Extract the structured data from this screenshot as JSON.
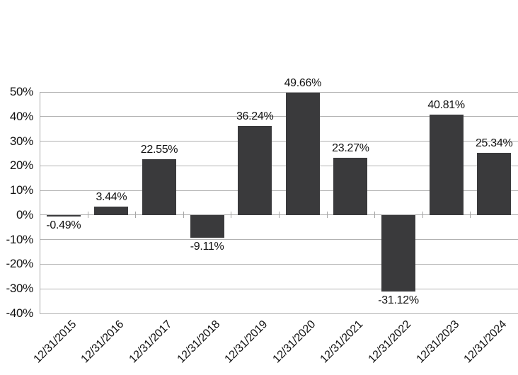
{
  "chart_data": {
    "type": "bar",
    "title": "",
    "xlabel": "",
    "ylabel": "",
    "categories": [
      "12/31/2015",
      "12/31/2016",
      "12/31/2017",
      "12/31/2018",
      "12/31/2019",
      "12/31/2020",
      "12/31/2021",
      "12/31/2022",
      "12/31/2023",
      "12/31/2024"
    ],
    "values": [
      -0.49,
      3.44,
      22.55,
      -9.11,
      36.24,
      49.66,
      23.27,
      -31.12,
      40.81,
      25.34
    ],
    "data_labels": [
      "-0.49%",
      "3.44%",
      "22.55%",
      "-9.11%",
      "36.24%",
      "49.66%",
      "23.27%",
      "-31.12%",
      "40.81%",
      "25.34%"
    ],
    "ylim": [
      -40,
      50
    ],
    "ytick_step": 10,
    "ytick_labels": [
      "50%",
      "40%",
      "30%",
      "20%",
      "10%",
      "0%",
      "-10%",
      "-20%",
      "-30%",
      "-40%"
    ],
    "grid": true,
    "legend": false,
    "colors": {
      "bar": "#3a3a3c",
      "gridline": "#b2b2b2",
      "axis": "#a6a6a6",
      "text": "#111111",
      "background": "#ffffff"
    }
  }
}
